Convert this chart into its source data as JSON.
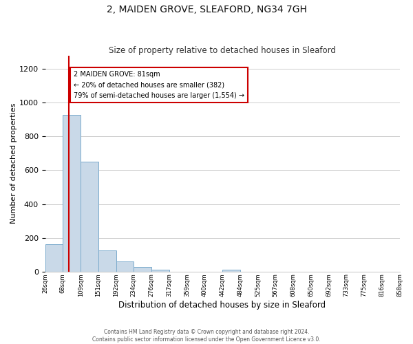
{
  "title": "2, MAIDEN GROVE, SLEAFORD, NG34 7GH",
  "subtitle": "Size of property relative to detached houses in Sleaford",
  "xlabel": "Distribution of detached houses by size in Sleaford",
  "ylabel": "Number of detached properties",
  "bar_values": [
    160,
    930,
    650,
    125,
    60,
    28,
    12,
    0,
    0,
    0,
    12,
    0,
    0,
    0,
    0,
    0,
    0,
    0,
    0,
    0
  ],
  "bin_labels": [
    "26sqm",
    "68sqm",
    "109sqm",
    "151sqm",
    "192sqm",
    "234sqm",
    "276sqm",
    "317sqm",
    "359sqm",
    "400sqm",
    "442sqm",
    "484sqm",
    "525sqm",
    "567sqm",
    "608sqm",
    "650sqm",
    "692sqm",
    "733sqm",
    "775sqm",
    "816sqm",
    "858sqm"
  ],
  "ylim": [
    0,
    1280
  ],
  "yticks": [
    0,
    200,
    400,
    600,
    800,
    1000,
    1200
  ],
  "bar_color": "#c9d9e8",
  "bar_edge_color": "#7aaacc",
  "vline_x": 1.32,
  "vline_color": "#cc0000",
  "annotation_text": "2 MAIDEN GROVE: 81sqm\n← 20% of detached houses are smaller (382)\n79% of semi-detached houses are larger (1,554) →",
  "annotation_box_color": "#ffffff",
  "annotation_box_edge": "#cc0000",
  "footer_line1": "Contains HM Land Registry data © Crown copyright and database right 2024.",
  "footer_line2": "Contains public sector information licensed under the Open Government Licence v3.0.",
  "background_color": "#ffffff",
  "grid_color": "#cccccc"
}
